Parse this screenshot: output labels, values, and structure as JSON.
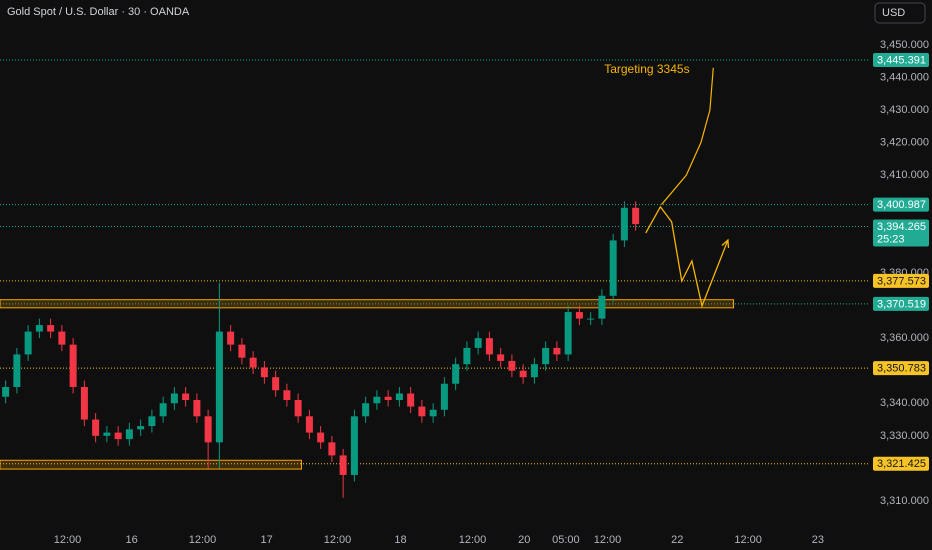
{
  "chart_data": {
    "type": "candlestick",
    "title": "Gold Spot / U.S. Dollar · 30 · OANDA",
    "currency": "USD",
    "xlim": [
      0,
      77.33
    ],
    "ylim": [
      3305.7,
      3463.8
    ],
    "xticks": [
      {
        "value": 6,
        "label": "12:00"
      },
      {
        "value": 11.7,
        "label": "16"
      },
      {
        "value": 18,
        "label": "12:00"
      },
      {
        "value": 23.7,
        "label": "17"
      },
      {
        "value": 30,
        "label": "12:00"
      },
      {
        "value": 35.6,
        "label": "18"
      },
      {
        "value": 42,
        "label": "12:00"
      },
      {
        "value": 46.6,
        "label": "20"
      },
      {
        "value": 50.3,
        "label": "05:00"
      },
      {
        "value": 54,
        "label": "12:00"
      },
      {
        "value": 60.2,
        "label": "22"
      },
      {
        "value": 66.5,
        "label": "12:00"
      },
      {
        "value": 72.7,
        "label": "23"
      }
    ],
    "yticks": [
      {
        "value": 3450,
        "label": "3,450.000"
      },
      {
        "value": 3440,
        "label": "3,440.000"
      },
      {
        "value": 3430,
        "label": "3,430.000"
      },
      {
        "value": 3420,
        "label": "3,420.000"
      },
      {
        "value": 3410,
        "label": "3,410.000"
      },
      {
        "value": 3380,
        "label": "3,380.000"
      },
      {
        "value": 3360,
        "label": "3,360.000"
      },
      {
        "value": 3340,
        "label": "3,340.000"
      },
      {
        "value": 3330,
        "label": "3,330.000"
      },
      {
        "value": 3310,
        "label": "3,310.000"
      }
    ],
    "x": [
      0.5,
      1.5,
      2.5,
      3.5,
      4.5,
      5.5,
      6.5,
      7.5,
      8.5,
      9.5,
      10.5,
      11.5,
      12.5,
      13.5,
      14.5,
      15.5,
      16.5,
      17.5,
      18.5,
      19.5,
      20.5,
      21.5,
      22.5,
      23.5,
      24.5,
      25.5,
      26.5,
      27.5,
      28.5,
      29.5,
      30.5,
      31.5,
      32.5,
      33.5,
      34.5,
      35.5,
      36.5,
      37.5,
      38.5,
      39.5,
      40.5,
      41.5,
      42.5,
      43.5,
      44.5,
      45.5,
      46.5,
      47.5,
      48.5,
      49.5,
      50.5,
      51.5,
      52.5,
      53.5,
      54.5,
      55.5,
      56.5
    ],
    "open": [
      3342,
      3345,
      3355,
      3362,
      3364,
      3362,
      3358,
      3345,
      3335,
      3330,
      3331,
      3329,
      3332,
      3333,
      3336,
      3340,
      3343,
      3341,
      3336,
      3328,
      3362,
      3358,
      3354,
      3351,
      3348,
      3344,
      3341,
      3336,
      3331,
      3328,
      3324,
      3318,
      3336,
      3340,
      3342,
      3341,
      3343,
      3339,
      3336,
      3338,
      3346,
      3352,
      3357,
      3360,
      3355,
      3353,
      3350,
      3348,
      3352,
      3357,
      3355,
      3368,
      3366,
      3366,
      3373,
      3390,
      3400
    ],
    "high": [
      3347,
      3357,
      3364,
      3366,
      3366,
      3364,
      3360,
      3347,
      3337,
      3333,
      3333,
      3334,
      3335,
      3338,
      3342,
      3345,
      3345,
      3343,
      3338,
      3377,
      3364,
      3360,
      3356,
      3353,
      3350,
      3346,
      3343,
      3338,
      3333,
      3330,
      3326,
      3338,
      3342,
      3344,
      3344,
      3345,
      3345,
      3341,
      3340,
      3348,
      3354,
      3359,
      3362,
      3362,
      3357,
      3355,
      3352,
      3354,
      3359,
      3359,
      3370,
      3370,
      3368,
      3375,
      3392,
      3402,
      3402
    ],
    "low": [
      3340,
      3343,
      3353,
      3360,
      3360,
      3356,
      3343,
      3333,
      3328,
      3328,
      3327,
      3327,
      3330,
      3331,
      3334,
      3338,
      3339,
      3334,
      3320,
      3320,
      3356,
      3352,
      3349,
      3346,
      3342,
      3339,
      3334,
      3329,
      3326,
      3322,
      3311,
      3316,
      3334,
      3338,
      3339,
      3339,
      3337,
      3334,
      3334,
      3336,
      3344,
      3350,
      3355,
      3353,
      3351,
      3348,
      3346,
      3346,
      3350,
      3353,
      3353,
      3364,
      3364,
      3364,
      3371,
      3388,
      3393
    ],
    "close": [
      3345,
      3355,
      3362,
      3364,
      3362,
      3358,
      3345,
      3335,
      3330,
      3331,
      3329,
      3332,
      3333,
      3336,
      3340,
      3343,
      3341,
      3336,
      3328,
      3362,
      3358,
      3354,
      3351,
      3348,
      3344,
      3341,
      3336,
      3331,
      3328,
      3324,
      3318,
      3336,
      3340,
      3342,
      3341,
      3343,
      3339,
      3336,
      3338,
      3346,
      3352,
      3357,
      3360,
      3355,
      3353,
      3350,
      3348,
      3352,
      3357,
      3355,
      3368,
      3366,
      3366,
      3373,
      3390,
      3400,
      3395
    ],
    "up_color": "#089981",
    "down_color": "#f23645",
    "levels": [
      {
        "value": 3445.391,
        "label": "3,445.391",
        "color": "#22ab94"
      },
      {
        "value": 3400.987,
        "label": "3,400.987",
        "color": "#22ab94"
      },
      {
        "value": 3394.265,
        "label": "3,394.265",
        "color": "#22ab94",
        "countdown": "25:23"
      },
      {
        "value": 3377.573,
        "label": "3,377.573",
        "color": "#f7c325"
      },
      {
        "value": 3370.519,
        "label": "3,370.519",
        "color": "#22ab94"
      },
      {
        "value": 3350.783,
        "label": "3,350.783",
        "color": "#f7c325"
      },
      {
        "value": 3321.425,
        "label": "3,321.425",
        "color": "#f7c325"
      }
    ],
    "zones": [
      {
        "x": [
          0,
          65.2
        ],
        "y": [
          3369.3,
          3371.8
        ],
        "color": "#f7a600"
      },
      {
        "x": [
          0,
          26.8
        ],
        "y": [
          3319.8,
          3322.5
        ],
        "color": "#f7a600"
      }
    ],
    "projection": {
      "color": "#f7b500",
      "x": [
        57.4,
        58.7,
        59.7,
        60.6,
        61.5,
        62.4,
        64.7
      ],
      "y": [
        3392.3,
        3400.3,
        3395.7,
        3377.5,
        3383.7,
        3369.9,
        3390.1
      ]
    },
    "arc": {
      "x": [
        58.8,
        61,
        62.3,
        63.1,
        63.4
      ],
      "y": [
        3401,
        3410,
        3420,
        3430,
        3443
      ]
    },
    "annotation": {
      "text": "Targeting 3345s",
      "x": 57.5,
      "y": 3442.3
    }
  }
}
